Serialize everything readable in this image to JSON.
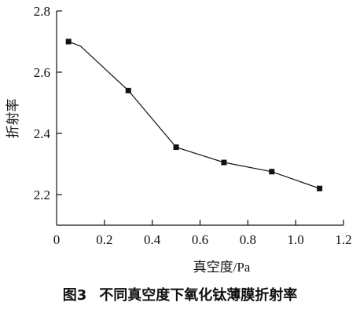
{
  "figure_caption": {
    "number": "图3",
    "title": "不同真空度下氧化钛薄膜折射率"
  },
  "chart_data": {
    "type": "line",
    "title": "",
    "xlabel": "真空度/Pa",
    "ylabel": "折射率",
    "xlim": [
      0,
      1.2
    ],
    "ylim": [
      2.1,
      2.8
    ],
    "x_ticks": [
      0,
      0.2,
      0.4,
      0.6,
      0.8,
      1.0,
      1.2
    ],
    "x_tick_labels": [
      "0",
      "0.2",
      "0.4",
      "0.6",
      "0.8",
      "1.0",
      "1.2"
    ],
    "y_ticks": [
      2.2,
      2.4,
      2.6,
      2.8
    ],
    "y_tick_labels": [
      "2.2",
      "2.4",
      "2.6",
      "2.8"
    ],
    "grid": false,
    "series": [
      {
        "x": [
          0.05,
          0.1,
          0.3,
          0.5,
          0.7,
          0.9,
          1.1
        ],
        "y": [
          2.7,
          2.685,
          2.54,
          2.355,
          2.305,
          2.275,
          2.22
        ],
        "markers": [
          true,
          false,
          true,
          true,
          true,
          true,
          true
        ]
      }
    ]
  }
}
